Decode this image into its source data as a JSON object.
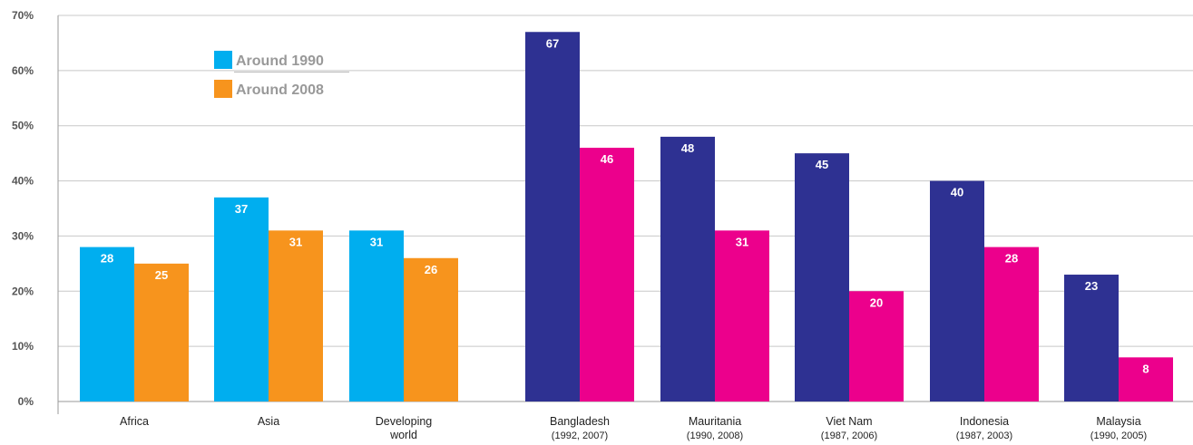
{
  "chart_data": {
    "type": "bar",
    "ylim": [
      0,
      70
    ],
    "y_ticks": [
      "0%",
      "10%",
      "20%",
      "30%",
      "40%",
      "50%",
      "60%",
      "70%"
    ],
    "grid": true,
    "legend": {
      "placement": "top-left",
      "entries": [
        {
          "label": "Around 1990",
          "color": "#00aeef"
        },
        {
          "label": "Around 2008",
          "color": "#f7941d"
        }
      ]
    },
    "groups": [
      {
        "label": "Africa",
        "sub": "",
        "values": [
          28,
          25
        ],
        "colors": [
          "#00aeef",
          "#f7941d"
        ]
      },
      {
        "label": "Asia",
        "sub": "",
        "values": [
          37,
          31
        ],
        "colors": [
          "#00aeef",
          "#f7941d"
        ]
      },
      {
        "label": "Developing",
        "sub": "world",
        "values": [
          31,
          26
        ],
        "colors": [
          "#00aeef",
          "#f7941d"
        ]
      },
      {
        "label": "Bangladesh",
        "sub": "(1992, 2007)",
        "values": [
          67,
          46
        ],
        "colors": [
          "#2e3192",
          "#ec008c"
        ]
      },
      {
        "label": "Mauritania",
        "sub": "(1990, 2008)",
        "values": [
          48,
          31
        ],
        "colors": [
          "#2e3192",
          "#ec008c"
        ]
      },
      {
        "label": "Viet Nam",
        "sub": "(1987, 2006)",
        "values": [
          45,
          20
        ],
        "colors": [
          "#2e3192",
          "#ec008c"
        ]
      },
      {
        "label": "Indonesia",
        "sub": "(1987, 2003)",
        "values": [
          40,
          28
        ],
        "colors": [
          "#2e3192",
          "#ec008c"
        ]
      },
      {
        "label": "Malaysia",
        "sub": "(1990, 2005)",
        "values": [
          23,
          8
        ],
        "colors": [
          "#2e3192",
          "#ec008c"
        ]
      }
    ]
  }
}
